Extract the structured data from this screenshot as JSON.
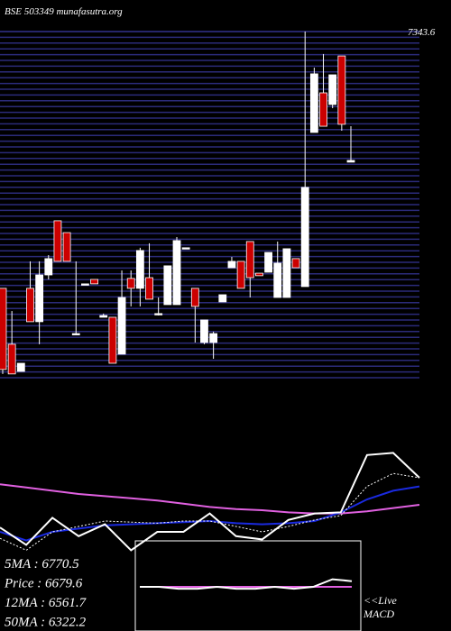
{
  "chart_data": [
    {
      "type": "candlestick",
      "title": "BSE 503349 munafasutra.org",
      "open": [
        6021,
        5733,
        5593,
        6021,
        5849,
        6090,
        6369,
        6308,
        5788,
        6044,
        6067,
        5872,
        5872,
        5682,
        6072,
        6021,
        6076,
        5891,
        5937,
        5937,
        6230,
        6021,
        5742,
        5742,
        5951,
        6127,
        6160,
        6262,
        6099,
        6104,
        5974,
        5974,
        6174,
        6030,
        6824,
        7028,
        6968,
        7218,
        6671
      ],
      "high": [
        6021,
        5904,
        5635,
        6160,
        6160,
        6192,
        6369,
        6308,
        6160,
        6044,
        6067,
        5891,
        5872,
        6113,
        6113,
        6230,
        6253,
        5974,
        6137,
        6285,
        6230,
        6021,
        5858,
        5798,
        5988,
        6183,
        6160,
        6262,
        6099,
        6206,
        6262,
        6225,
        6174,
        7344,
        7158,
        7228,
        7121,
        7218,
        6856
      ],
      "low": [
        5580,
        5580,
        5593,
        5849,
        5733,
        6067,
        6160,
        6160,
        5779,
        6044,
        6044,
        5872,
        5635,
        5682,
        5928,
        5928,
        5965,
        5881,
        5937,
        5937,
        6230,
        5742,
        5733,
        5658,
        5951,
        6127,
        6021,
        5974,
        6086,
        6104,
        5974,
        5974,
        6127,
        6030,
        6824,
        6856,
        6949,
        6833,
        6671
      ],
      "close": [
        5603,
        5580,
        5635,
        5849,
        6090,
        6174,
        6160,
        6160,
        5788,
        6044,
        6044,
        5881,
        5635,
        5974,
        6021,
        6216,
        5965,
        5891,
        6137,
        6267,
        6230,
        5928,
        5858,
        5788,
        5988,
        6160,
        6021,
        6076,
        6086,
        6206,
        6151,
        6225,
        6127,
        6541,
        7126,
        6856,
        7121,
        6866,
        6680
      ],
      "up_color": "#ffffff",
      "down_color": "#cc0000",
      "grid_color": "#2b2b7a",
      "ylim": [
        5556,
        7367
      ],
      "yticks": [
        7343.6
      ],
      "annotations": [
        "5MA : 6770.5",
        "Price : 6679.6",
        "12MA : 6561.7",
        "50MA : 6322.2"
      ]
    },
    {
      "type": "line",
      "ylim": [
        0,
        100
      ],
      "series": [
        {
          "color": "#e060e0",
          "values": [
            69,
            66,
            63,
            60,
            58,
            56,
            54,
            51,
            48,
            46,
            45,
            43,
            42,
            42,
            44,
            47,
            50
          ]
        },
        {
          "color": "#1a2ae0",
          "values": [
            25,
            17,
            25,
            28,
            31,
            32,
            33,
            34,
            35,
            33,
            32,
            33,
            35,
            43,
            55,
            63,
            67
          ]
        },
        {
          "color": "#ffffff",
          "dash": true,
          "values": [
            19,
            8,
            25,
            30,
            35,
            34,
            33,
            35,
            35,
            30,
            25,
            30,
            36,
            40,
            67,
            79,
            75
          ]
        },
        {
          "color": "#ffffff",
          "values": [
            29,
            13,
            38,
            21,
            32,
            8,
            25,
            25,
            42,
            21,
            18,
            36,
            42,
            43,
            96,
            98,
            75
          ]
        }
      ]
    },
    {
      "type": "line",
      "ylim": [
        -1,
        1
      ],
      "annotations": [
        "<<Live",
        "MACD"
      ],
      "series": [
        {
          "color": "#e060e0",
          "values": [
            0,
            0,
            0,
            0,
            0,
            0,
            0,
            0,
            0,
            0,
            0,
            0
          ]
        },
        {
          "color": "#ffffff",
          "values": [
            0,
            0,
            -0.1,
            -0.1,
            0,
            -0.1,
            -0.1,
            0,
            -0.1,
            0,
            0.4,
            0.3
          ]
        }
      ]
    }
  ]
}
